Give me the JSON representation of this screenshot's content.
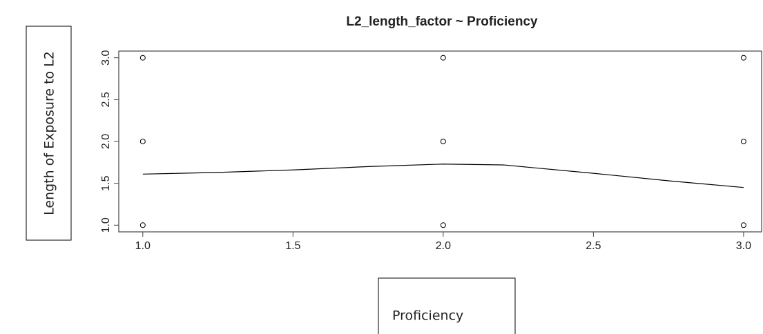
{
  "chart_data": {
    "type": "scatter",
    "title": "L2_length_factor ~ Proficiency",
    "x_label": "Proficiency",
    "y_label": "Length of Exposure to L2",
    "series": [
      {
        "kind": "points",
        "color": "#000000",
        "x": [
          1,
          1,
          1,
          2,
          2,
          2,
          3,
          3,
          3
        ],
        "values": [
          1,
          2,
          3,
          1,
          2,
          3,
          1,
          2,
          3
        ]
      },
      {
        "kind": "line",
        "color": "#000000",
        "x": [
          1,
          1.25,
          1.5,
          1.75,
          2,
          2.2,
          2.5,
          2.75,
          3
        ],
        "values": [
          1.61,
          1.63,
          1.66,
          1.7,
          1.73,
          1.72,
          1.62,
          1.53,
          1.45
        ]
      }
    ],
    "xlim": [
      0.92,
      3.06
    ],
    "xticks": [
      {
        "value": 1,
        "label": "1.0"
      },
      {
        "value": 1.5,
        "label": "1.5"
      },
      {
        "value": 2,
        "label": "2.0"
      },
      {
        "value": 2.5,
        "label": "2.5"
      },
      {
        "value": 3,
        "label": "3.0"
      }
    ],
    "ylim": [
      0.92,
      3.08
    ],
    "yticks": [
      {
        "value": 1,
        "label": "1.0"
      },
      {
        "value": 1.5,
        "label": "1.5"
      },
      {
        "value": 2,
        "label": "2.0"
      },
      {
        "value": 2.5,
        "label": "2.5"
      },
      {
        "value": 3,
        "label": "3.0"
      }
    ]
  }
}
